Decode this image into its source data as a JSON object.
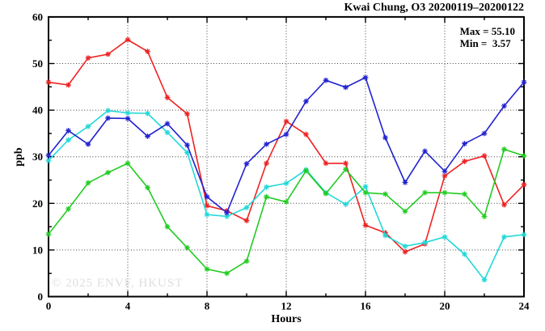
{
  "title": "Kwai Chung, O3 20200119–20200122",
  "stats": {
    "max_label": "Max = 55.10",
    "min_label": "Min =  3.57"
  },
  "watermark": "© 2025 ENVF, HKUST",
  "axes": {
    "xlabel": "Hours",
    "ylabel": "ppb"
  },
  "chart_data": {
    "type": "line",
    "title": "Kwai Chung, O3 20200119–20200122",
    "xlabel": "Hours",
    "ylabel": "ppb",
    "xlim": [
      0,
      24
    ],
    "ylim": [
      0,
      60
    ],
    "x_major_ticks": [
      0,
      4,
      8,
      12,
      16,
      20,
      24
    ],
    "x_minor_step": 2,
    "y_major_ticks": [
      0,
      10,
      20,
      30,
      40,
      50,
      60
    ],
    "y_minor_step": 5,
    "grid": "dotted-at-major",
    "legend_position": "none",
    "max": 55.1,
    "min": 3.57,
    "x": [
      0,
      1,
      2,
      3,
      4,
      5,
      6,
      7,
      8,
      9,
      10,
      11,
      12,
      13,
      14,
      15,
      16,
      17,
      18,
      19,
      20,
      21,
      22,
      23,
      24
    ],
    "series": [
      {
        "name": "red",
        "color": "#ee2222",
        "values": [
          46.0,
          45.4,
          51.2,
          52.0,
          55.1,
          52.6,
          42.7,
          39.2,
          19.5,
          18.4,
          16.3,
          28.6,
          37.6,
          34.8,
          28.6,
          28.6,
          15.3,
          13.7,
          9.6,
          11.3,
          25.9,
          29.0,
          30.2,
          19.7,
          24.0
        ]
      },
      {
        "name": "cyan",
        "color": "#22d8d8",
        "values": [
          29.2,
          33.6,
          36.5,
          39.9,
          39.4,
          39.3,
          35.2,
          30.9,
          17.6,
          17.2,
          19.1,
          23.5,
          24.3,
          27.2,
          22.3,
          19.8,
          23.6,
          13.1,
          10.8,
          11.6,
          12.8,
          9.1,
          3.6,
          12.8,
          13.3
        ]
      },
      {
        "name": "green",
        "color": "#22cc22",
        "values": [
          13.4,
          18.8,
          24.4,
          26.6,
          28.6,
          23.4,
          15.0,
          10.5,
          5.9,
          5.0,
          7.6,
          21.4,
          20.3,
          27.0,
          22.1,
          27.3,
          22.3,
          22.0,
          18.3,
          22.3,
          22.3,
          22.0,
          17.2,
          31.6,
          30.2
        ]
      },
      {
        "name": "blue",
        "color": "#2222d0",
        "values": [
          30.3,
          35.6,
          32.7,
          38.3,
          38.2,
          34.4,
          37.1,
          32.5,
          21.4,
          18.0,
          28.5,
          32.7,
          34.8,
          41.9,
          46.4,
          44.9,
          47.0,
          34.1,
          24.5,
          31.2,
          26.9,
          32.8,
          35.0,
          40.9,
          46.0
        ]
      }
    ]
  }
}
